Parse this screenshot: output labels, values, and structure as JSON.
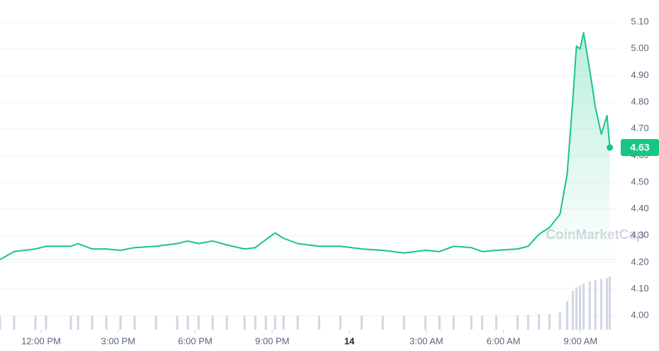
{
  "chart_data": {
    "type": "line",
    "watermark": "CoinMarketCap",
    "x": [
      10.4,
      10.95,
      11.78,
      12.19,
      13.16,
      13.44,
      13.99,
      14.54,
      15.09,
      15.64,
      16.47,
      17.3,
      17.71,
      18.13,
      18.68,
      19.23,
      19.92,
      20.34,
      20.75,
      21.11,
      21.44,
      21.99,
      22.82,
      23.65,
      24.48,
      25.3,
      26.13,
      26.96,
      27.51,
      28.06,
      28.75,
      29.17,
      29.72,
      30.55,
      30.96,
      31.38,
      31.79,
      32.2,
      32.48,
      32.7,
      32.84,
      32.98,
      33.12,
      33.36,
      33.58,
      33.81,
      34.03,
      34.14
    ],
    "series": [
      {
        "name": "Price",
        "color": "#16c784",
        "values": [
          4.21,
          4.24,
          4.25,
          4.26,
          4.26,
          4.27,
          4.25,
          4.25,
          4.245,
          4.255,
          4.26,
          4.27,
          4.28,
          4.27,
          4.28,
          4.265,
          4.25,
          4.255,
          4.285,
          4.31,
          4.29,
          4.27,
          4.26,
          4.26,
          4.25,
          4.245,
          4.235,
          4.245,
          4.24,
          4.26,
          4.255,
          4.24,
          4.245,
          4.25,
          4.26,
          4.305,
          4.33,
          4.38,
          4.53,
          4.81,
          5.01,
          5.0,
          5.06,
          4.92,
          4.78,
          4.68,
          4.75,
          4.63
        ]
      },
      {
        "name": "Volume",
        "color": "#cfd6e4",
        "axis": "y2",
        "values": [
          20,
          20,
          20,
          20,
          20,
          20,
          20,
          20,
          20,
          20,
          20,
          20,
          20,
          20,
          20,
          20,
          20,
          20,
          20,
          20,
          20,
          20,
          20,
          20,
          20,
          20,
          20,
          20,
          20,
          20,
          20,
          20,
          20,
          20,
          21,
          22,
          22,
          25,
          40,
          55,
          60,
          62,
          65,
          68,
          70,
          72,
          73,
          75
        ]
      }
    ],
    "xlim": [
      10.4,
      34.4
    ],
    "xticks": [
      {
        "value": 12,
        "label": "12:00 PM"
      },
      {
        "value": 15,
        "label": "3:00 PM"
      },
      {
        "value": 18,
        "label": "6:00 PM"
      },
      {
        "value": 21,
        "label": "9:00 PM"
      },
      {
        "value": 24,
        "label": "14"
      },
      {
        "value": 27,
        "label": "3:00 AM"
      },
      {
        "value": 30,
        "label": "6:00 AM"
      },
      {
        "value": 33,
        "label": "9:00 AM"
      }
    ],
    "ylim": [
      3.95,
      5.18
    ],
    "yticks": [
      {
        "value": 4.0,
        "label": "4.00"
      },
      {
        "value": 4.1,
        "label": "4.10"
      },
      {
        "value": 4.2,
        "label": "4.20"
      },
      {
        "value": 4.3,
        "label": "4.30"
      },
      {
        "value": 4.4,
        "label": "4.40"
      },
      {
        "value": 4.5,
        "label": "4.50"
      },
      {
        "value": 4.6,
        "label": "4.60"
      },
      {
        "value": 4.7,
        "label": "4.70"
      },
      {
        "value": 4.8,
        "label": "4.80"
      },
      {
        "value": 4.9,
        "label": "4.90"
      },
      {
        "value": 5.0,
        "label": "5.00"
      },
      {
        "value": 5.1,
        "label": "5.10"
      }
    ],
    "y2lim": [
      0,
      100
    ],
    "grid": true
  }
}
